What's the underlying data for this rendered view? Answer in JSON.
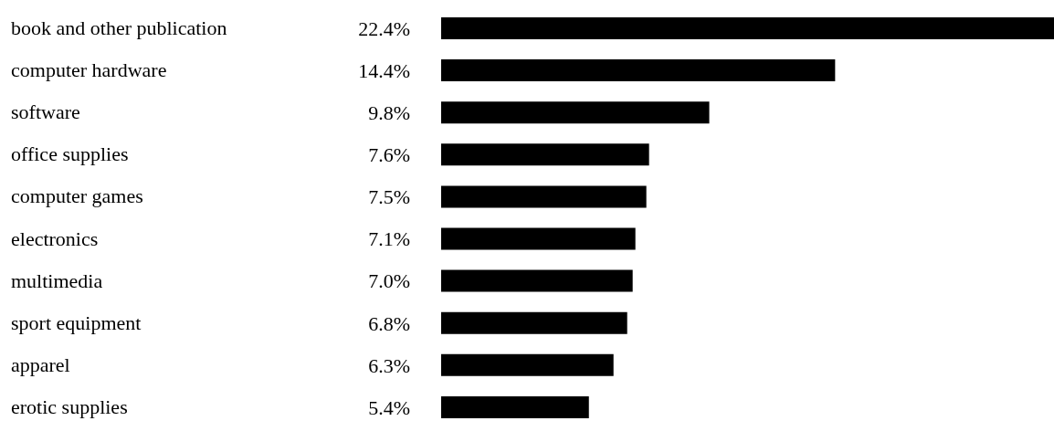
{
  "chart_data": {
    "type": "bar",
    "orientation": "horizontal",
    "categories": [
      "book and other publication",
      "computer hardware",
      "software",
      "office supplies",
      "computer games",
      "electronics",
      "multimedia",
      "sport equipment",
      "apparel",
      "erotic supplies"
    ],
    "values": [
      22.4,
      14.4,
      9.8,
      7.6,
      7.5,
      7.1,
      7.0,
      6.8,
      6.3,
      5.4
    ],
    "value_labels": [
      "22.4%",
      "14.4%",
      "9.8%",
      "7.6%",
      "7.5%",
      "7.1%",
      "7.0%",
      "6.8%",
      "6.3%",
      "5.4%"
    ],
    "color": "#000000",
    "grid": false,
    "legend": false
  }
}
